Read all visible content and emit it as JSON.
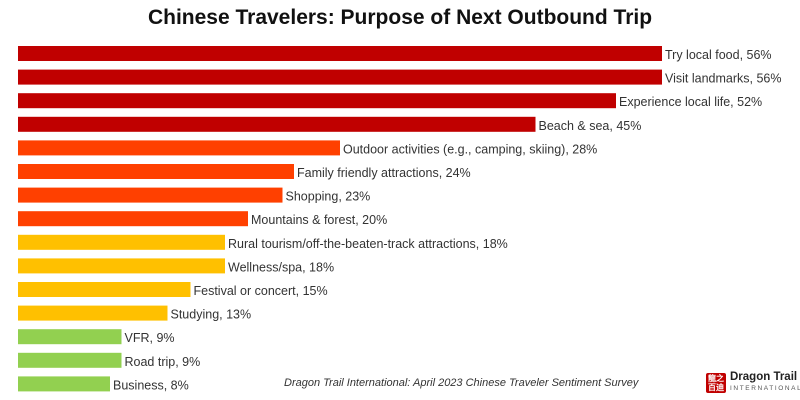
{
  "title": "Chinese Travelers: Purpose of Next Outbound Trip",
  "source": "Dragon Trail International: April 2023 Chinese Traveler Sentiment Survey",
  "logo": {
    "mark": "龍之 百迪",
    "name": "Dragon Trail",
    "sub": "INTERNATIONAL"
  },
  "colors": {
    "dark_red": "#c00000",
    "orange_red": "#ff4000",
    "amber": "#ffc000",
    "green": "#92d050"
  },
  "chart_data": {
    "type": "bar",
    "orientation": "horizontal",
    "title": "Chinese Travelers: Purpose of Next Outbound Trip",
    "unit": "%",
    "bars": [
      {
        "label": "Try local food, 56%",
        "category": "Try local food",
        "value": 56,
        "color": "#c00000"
      },
      {
        "label": "Visit landmarks, 56%",
        "category": "Visit landmarks",
        "value": 56,
        "color": "#c00000"
      },
      {
        "label": "Experience local life, 52%",
        "category": "Experience local life",
        "value": 52,
        "color": "#c00000"
      },
      {
        "label": "Beach & sea, 45%",
        "category": "Beach & sea",
        "value": 45,
        "color": "#c00000"
      },
      {
        "label": "Outdoor activities (e.g., camping, skiing), 28%",
        "category": "Outdoor activities (e.g., camping, skiing)",
        "value": 28,
        "color": "#ff4000"
      },
      {
        "label": "Family friendly attractions, 24%",
        "category": "Family friendly attractions",
        "value": 24,
        "color": "#ff4000"
      },
      {
        "label": "Shopping, 23%",
        "category": "Shopping",
        "value": 23,
        "color": "#ff4000"
      },
      {
        "label": "Mountains & forest, 20%",
        "category": "Mountains & forest",
        "value": 20,
        "color": "#ff4000"
      },
      {
        "label": "Rural tourism/off-the-beaten-track attractions, 18%",
        "category": "Rural tourism/off-the-beaten-track attractions",
        "value": 18,
        "color": "#ffc000"
      },
      {
        "label": "Wellness/spa, 18%",
        "category": "Wellness/spa",
        "value": 18,
        "color": "#ffc000"
      },
      {
        "label": "Festival or concert, 15%",
        "category": "Festival or concert",
        "value": 15,
        "color": "#ffc000"
      },
      {
        "label": "Studying, 13%",
        "category": "Studying",
        "value": 13,
        "color": "#ffc000"
      },
      {
        "label": "VFR, 9%",
        "category": "VFR",
        "value": 9,
        "color": "#92d050"
      },
      {
        "label": "Road trip, 9%",
        "category": "Road trip",
        "value": 9,
        "color": "#92d050"
      },
      {
        "label": "Business, 8%",
        "category": "Business",
        "value": 8,
        "color": "#92d050"
      }
    ]
  }
}
